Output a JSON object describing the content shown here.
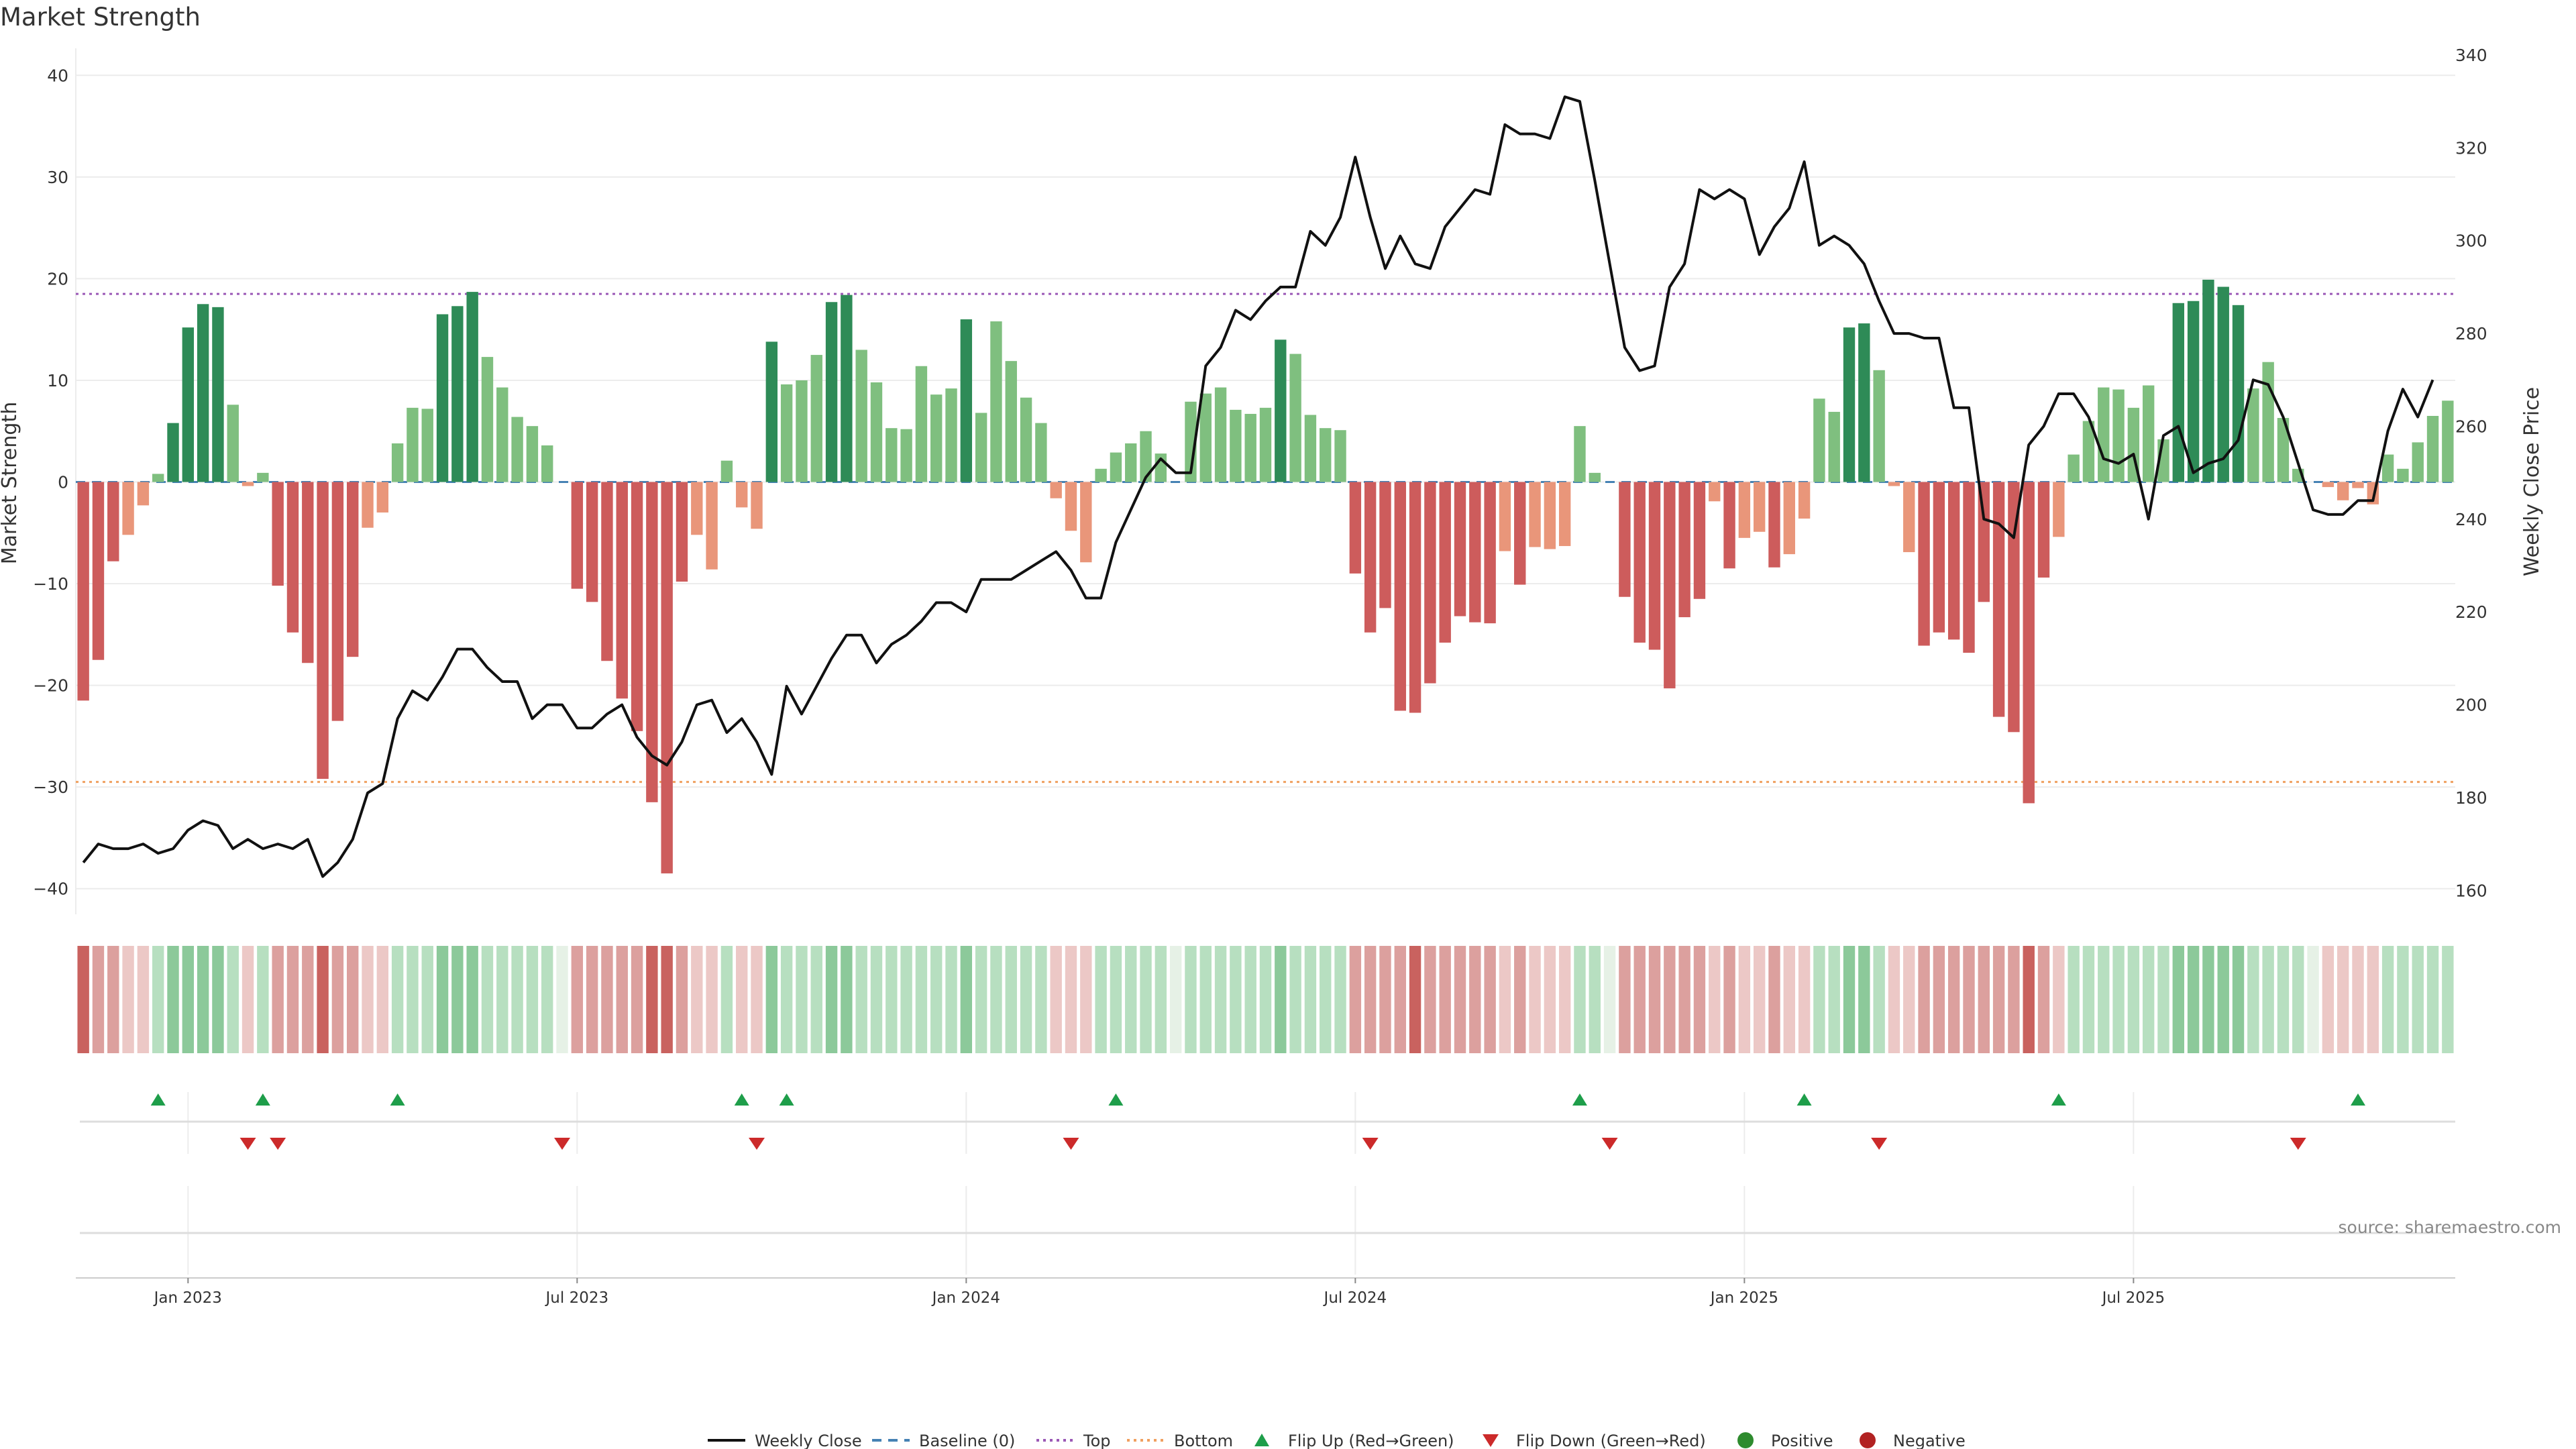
{
  "chart_data": {
    "type": "bar+line",
    "title": "Market Strength",
    "ylabel_left": "Market Strength",
    "ylabel_right": "Weekly Close Price",
    "ylim_left": [
      -42,
      42
    ],
    "ylim_right": [
      156,
      340
    ],
    "yticks_left": [
      "40",
      "30",
      "20",
      "10",
      "0",
      "−10",
      "−20",
      "−30",
      "−40"
    ],
    "yticks_right": [
      "340",
      "320",
      "300",
      "280",
      "260",
      "240",
      "220",
      "200",
      "180",
      "160"
    ],
    "x_ticks": [
      "Jan 2023",
      "Jul 2023",
      "Jan 2024",
      "Jul 2024",
      "Jan 2025",
      "Jul 2025"
    ],
    "top_line": 18.5,
    "bottom_line": -29.5,
    "strength": [
      -21.5,
      -17.5,
      -7.8,
      -5.2,
      -2.3,
      0.8,
      5.8,
      15.2,
      17.5,
      17.2,
      7.6,
      -0.4,
      0.9,
      -10.2,
      -14.8,
      -17.8,
      -29.2,
      -23.5,
      -17.2,
      -4.5,
      -3.0,
      3.8,
      7.3,
      7.2,
      16.5,
      17.3,
      18.7,
      12.3,
      9.3,
      6.4,
      5.5,
      3.6,
      0,
      -10.5,
      -11.8,
      -17.6,
      -21.3,
      -24.5,
      -31.5,
      -38.5,
      -9.8,
      -5.2,
      -8.6,
      2.1,
      -2.5,
      -4.6,
      13.8,
      9.6,
      10.0,
      12.5,
      17.7,
      18.4,
      13.0,
      9.8,
      5.3,
      5.2,
      11.4,
      8.6,
      9.2,
      16.0,
      6.8,
      15.8,
      11.9,
      8.3,
      5.8,
      -1.6,
      -4.8,
      -7.9,
      1.3,
      2.9,
      3.8,
      5.0,
      2.8,
      0,
      7.9,
      8.7,
      9.3,
      7.1,
      6.7,
      7.3,
      14.0,
      12.6,
      6.6,
      5.3,
      5.1,
      -9.0,
      -14.8,
      -12.4,
      -22.5,
      -22.7,
      -19.8,
      -15.8,
      -13.2,
      -13.8,
      -13.9,
      -6.8,
      -10.1,
      -6.4,
      -6.6,
      -6.3,
      5.5,
      0.9,
      0,
      -11.3,
      -15.8,
      -16.5,
      -20.3,
      -13.3,
      -11.5,
      -1.9,
      -8.5,
      -5.5,
      -4.9,
      -8.4,
      -7.1,
      -3.6,
      8.2,
      6.9,
      15.2,
      15.6,
      11.0,
      -0.4,
      -6.9,
      -16.1,
      -14.8,
      -15.5,
      -16.8,
      -11.8,
      -23.1,
      -24.6,
      -31.6,
      -9.4,
      -5.4,
      2.7,
      6.0,
      9.3,
      9.1,
      7.3,
      9.5,
      4.2,
      17.6,
      17.8,
      19.9,
      19.2,
      17.4,
      9.2,
      11.8,
      6.3,
      1.3,
      0,
      -0.5,
      -1.8,
      -0.6,
      -2.2,
      2.7,
      1.3,
      3.9,
      6.5,
      8.0
    ],
    "close": [
      166,
      170,
      169,
      169,
      170,
      168,
      169,
      173,
      175,
      174,
      169,
      171,
      169,
      170,
      169,
      171,
      163,
      166,
      171,
      181,
      183,
      197,
      203,
      201,
      206,
      212,
      212,
      208,
      205,
      205,
      197,
      200,
      200,
      195,
      195,
      198,
      200,
      193,
      189,
      187,
      192,
      200,
      201,
      194,
      197,
      192,
      185,
      204,
      198,
      204,
      210,
      215,
      215,
      209,
      213,
      215,
      218,
      222,
      222,
      220,
      227,
      227,
      227,
      229,
      231,
      233,
      229,
      223,
      223,
      235,
      242,
      249,
      253,
      250,
      250,
      273,
      277,
      285,
      283,
      287,
      290,
      290,
      302,
      299,
      305,
      318,
      305,
      294,
      301,
      295,
      294,
      303,
      307,
      311,
      310,
      325,
      323,
      323,
      322,
      331,
      330,
      313,
      295,
      277,
      272,
      273,
      290,
      295,
      311,
      309,
      311,
      309,
      297,
      303,
      307,
      317,
      299,
      301,
      299,
      295,
      287,
      280,
      280,
      279,
      279,
      264,
      264,
      240,
      239,
      236,
      256,
      260,
      267,
      267,
      262,
      253,
      252,
      254,
      240,
      258,
      260,
      250,
      252,
      253,
      257,
      270,
      269,
      262,
      252,
      242,
      241,
      241,
      244,
      244,
      259,
      268,
      262,
      270
    ],
    "color_strip": [
      -3,
      -2,
      -2,
      -1,
      -1,
      1,
      2,
      2,
      2,
      2,
      1,
      -1,
      1,
      -2,
      -2,
      -2,
      -3,
      -2,
      -2,
      -1,
      -1,
      1,
      1,
      1,
      2,
      2,
      2,
      1,
      1,
      1,
      1,
      1,
      0,
      -2,
      -2,
      -2,
      -2,
      -2,
      -3,
      -3,
      -2,
      -1,
      -1,
      1,
      -1,
      -1,
      2,
      1,
      1,
      1,
      2,
      2,
      1,
      1,
      1,
      1,
      1,
      1,
      1,
      2,
      1,
      1,
      1,
      1,
      1,
      -1,
      -1,
      -1,
      1,
      1,
      1,
      1,
      1,
      0,
      1,
      1,
      1,
      1,
      1,
      1,
      2,
      1,
      1,
      1,
      1,
      -2,
      -2,
      -2,
      -2,
      -3,
      -2,
      -2,
      -2,
      -2,
      -2,
      -1,
      -2,
      -1,
      -1,
      -1,
      1,
      1,
      0,
      -2,
      -2,
      -2,
      -2,
      -2,
      -2,
      -1,
      -2,
      -1,
      -1,
      -2,
      -1,
      -1,
      1,
      1,
      2,
      2,
      1,
      -1,
      -1,
      -2,
      -2,
      -2,
      -2,
      -2,
      -2,
      -2,
      -3,
      -2,
      -1,
      1,
      1,
      1,
      1,
      1,
      1,
      1,
      2,
      2,
      2,
      2,
      2,
      1,
      1,
      1,
      1,
      0,
      -1,
      -1,
      -1,
      -1,
      1,
      1,
      1,
      1,
      1
    ],
    "flip_up_weeks": [
      5,
      12,
      21,
      44,
      47,
      69,
      100,
      115,
      132,
      152
    ],
    "flip_down_weeks": [
      11,
      13,
      32,
      45,
      66,
      86,
      102,
      120,
      148
    ],
    "legend": [
      "Weekly Close",
      "Baseline (0)",
      "Top",
      "Bottom",
      "Flip Up (Red→Green)",
      "Flip Down (Green→Red)",
      "Positive",
      "Negative"
    ],
    "source": "source: sharemaestro.com",
    "colors": {
      "strong_pos": "#2e8b57",
      "weak_pos": "#7fbf7f",
      "strong_neg": "#cd5c5c",
      "weak_neg": "#e9967a",
      "top_line": "#9b59b6",
      "bottom_line": "#f0a060",
      "baseline": "#4682b4",
      "close_line": "#111111",
      "flip_up": "#1e9e4a",
      "flip_down": "#cc2a2a",
      "positive_dot": "#2e8b2e",
      "negative_dot": "#b22222",
      "grid": "#ececec"
    }
  }
}
